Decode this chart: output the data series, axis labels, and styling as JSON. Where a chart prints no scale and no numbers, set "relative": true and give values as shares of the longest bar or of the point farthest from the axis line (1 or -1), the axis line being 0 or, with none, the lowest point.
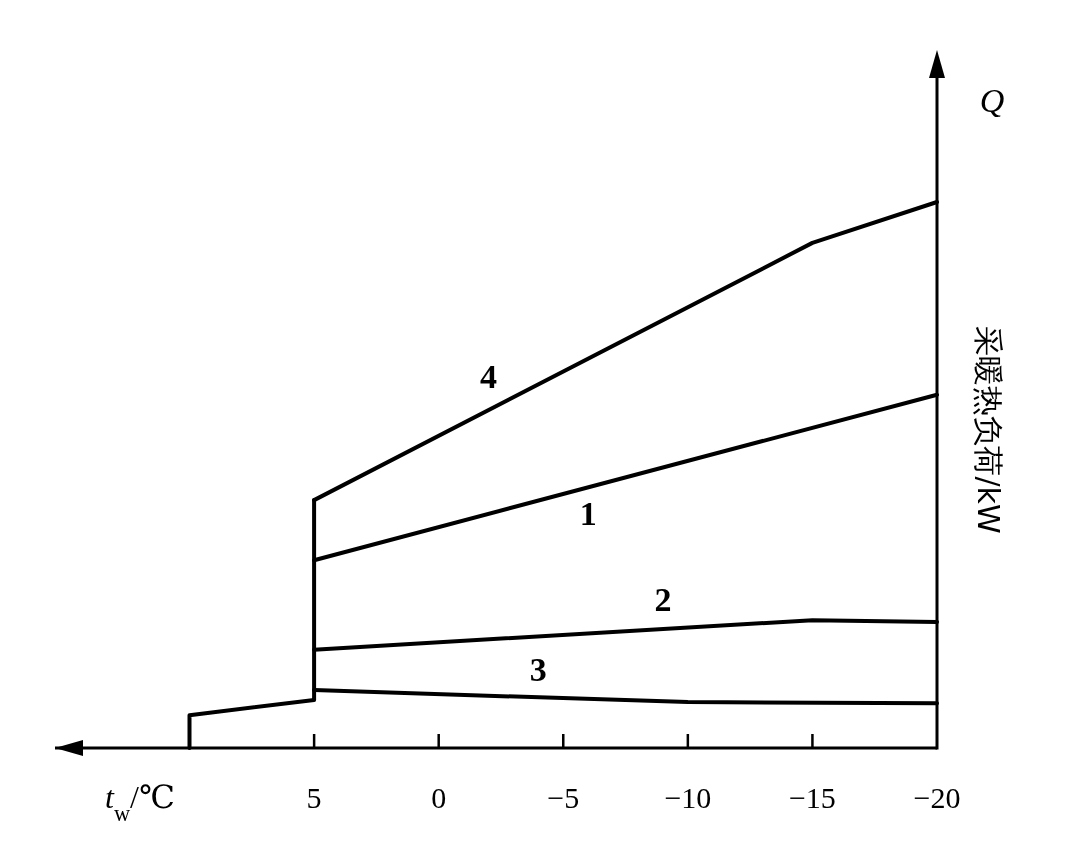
{
  "chart_data": {
    "type": "line",
    "relative": true,
    "xlabel": "*t*$_{w}$/℃",
    "ylabel": "采暖热负荷/kW",
    "annotations": [
      "*Q*"
    ],
    "xlim": [
      15.4,
      -20
    ],
    "xticks": [
      5,
      0,
      {
        "value": -5,
        "label": "−5"
      },
      {
        "value": -10,
        "label": "−10"
      },
      {
        "value": -15,
        "label": "−15"
      },
      {
        "value": -20,
        "label": "−20"
      }
    ],
    "series": [
      {
        "name": "1",
        "color": "#000000",
        "x": [
          5,
          -20
        ],
        "values": [
          0.344,
          0.647
        ]
      },
      {
        "name": "2",
        "color": "#000000",
        "x": [
          5,
          -15,
          -20
        ],
        "values": [
          0.18,
          0.234,
          0.231
        ]
      },
      {
        "name": "3",
        "color": "#000000",
        "x": [
          5,
          -10,
          -20
        ],
        "values": [
          0.106,
          0.084,
          0.082
        ]
      },
      {
        "name": "4",
        "color": "#000000",
        "x": [
          5,
          -15,
          -20
        ],
        "values": [
          0.454,
          0.925,
          1.0
        ]
      },
      {
        "color": "#000000",
        "x": [
          10,
          10,
          5,
          5
        ],
        "values": [
          0,
          0.06,
          0.088,
          0.454
        ]
      }
    ]
  }
}
